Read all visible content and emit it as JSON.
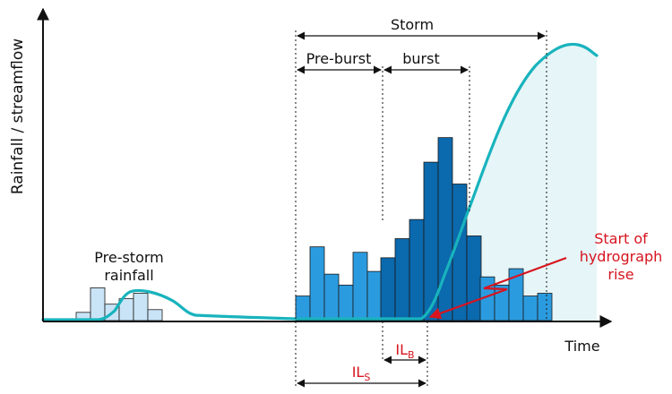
{
  "axes": {
    "ylabel": "Rainfall / streamflow",
    "xlabel": "Time"
  },
  "periods": {
    "storm": "Storm",
    "pre_burst": "Pre-burst",
    "burst": "burst"
  },
  "annotations": {
    "pre_storm_line1": "Pre-storm",
    "pre_storm_line2": "rainfall",
    "start_line1": "Start of",
    "start_line2": "hydrograph",
    "start_line3": "rise"
  },
  "losses": {
    "ils_main": "IL",
    "ils_sub": "S",
    "ilb_main": "IL",
    "ilb_sub": "B"
  },
  "colors": {
    "pre_storm_bar": "#c9e4f6",
    "storm_bar": "#2b9be0",
    "burst_bar": "#0b69ad",
    "hydrograph": "#18b3bd",
    "runoff_fill": "#e6f5f7",
    "annotation_red": "#d7141f",
    "axis": "#111111"
  },
  "rainfall": {
    "pre_storm": [
      0.3,
      1.2,
      0.6,
      0.8,
      1.0,
      0.4
    ],
    "pre_burst": [
      0.9,
      2.7,
      1.7,
      1.3,
      2.5,
      1.8
    ],
    "burst": [
      2.3,
      3.0,
      3.7,
      5.8,
      6.7,
      5.0,
      3.1
    ],
    "post_burst": [
      1.6,
      1.3,
      1.9,
      0.9,
      1.0
    ]
  }
}
